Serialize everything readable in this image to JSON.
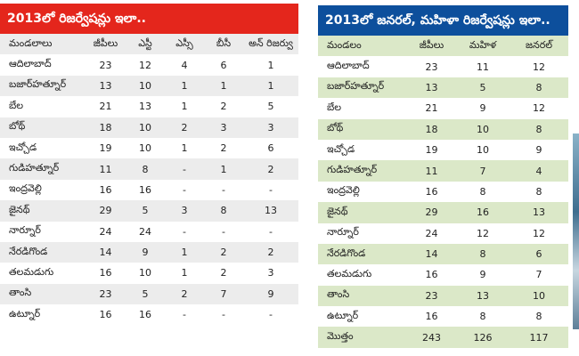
{
  "left_table": {
    "title": "2013లో రిజర్వేషన్లు ఇలా..",
    "headers": [
      "మండలాలు",
      "జీపీలు",
      "ఎస్టీ",
      "ఎస్సీ",
      "బీసీ",
      "అన్ రిజర్వు"
    ],
    "rows": [
      [
        "ఆదిలాబాద్",
        "23",
        "12",
        "4",
        "6",
        "1"
      ],
      [
        "బజార్‌హత్నూర్",
        "13",
        "10",
        "1",
        "1",
        "1"
      ],
      [
        "బేల",
        "21",
        "13",
        "1",
        "2",
        "5"
      ],
      [
        "బోథ్",
        "18",
        "10",
        "2",
        "3",
        "3"
      ],
      [
        "ఇచ్చోడ",
        "19",
        "10",
        "1",
        "2",
        "6"
      ],
      [
        "గుడిహత్నూర్",
        "11",
        "8",
        "-",
        "1",
        "2"
      ],
      [
        "ఇంద్రవెల్లి",
        "16",
        "16",
        "-",
        "-",
        "-"
      ],
      [
        "జైనథ్",
        "29",
        "5",
        "3",
        "8",
        "13"
      ],
      [
        "నార్నూర్",
        "24",
        "24",
        "-",
        "-",
        "-"
      ],
      [
        "నేరడిగొండ",
        "14",
        "9",
        "1",
        "2",
        "2"
      ],
      [
        "తలమడుగు",
        "16",
        "10",
        "1",
        "2",
        "3"
      ],
      [
        "తాంసి",
        "23",
        "5",
        "2",
        "7",
        "9"
      ],
      [
        "ఉట్నూర్",
        "16",
        "16",
        "-",
        "-",
        "-"
      ]
    ]
  },
  "right_table": {
    "title": "2013లో జనరల్, మహిళా రిజర్వేషన్లు ఇలా..",
    "headers": [
      "మండలం",
      "జీపీలు",
      "మహిళ",
      "జనరల్"
    ],
    "rows": [
      [
        "ఆదిలాబాద్",
        "23",
        "11",
        "12"
      ],
      [
        "బజార్‌హత్నూర్",
        "13",
        "5",
        "8"
      ],
      [
        "బేల",
        "21",
        "9",
        "12"
      ],
      [
        "బోథ్",
        "18",
        "10",
        "8"
      ],
      [
        "ఇచ్చోడ",
        "19",
        "10",
        "9"
      ],
      [
        "గుడిహత్నూర్",
        "11",
        "7",
        "4"
      ],
      [
        "ఇంద్రవెల్లి",
        "16",
        "8",
        "8"
      ],
      [
        "జైనథ్",
        "29",
        "16",
        "13"
      ],
      [
        "నార్నూర్",
        "24",
        "12",
        "12"
      ],
      [
        "నేరడిగొండ",
        "14",
        "8",
        "6"
      ],
      [
        "తలమడుగు",
        "16",
        "9",
        "7"
      ],
      [
        "తాంసి",
        "23",
        "13",
        "10"
      ],
      [
        "ఉట్నూర్",
        "16",
        "8",
        "8"
      ],
      [
        "మొత్తం",
        "243",
        "126",
        "117"
      ]
    ]
  },
  "colors": {
    "left_title_bg": "#e4261c",
    "right_title_bg": "#0d4f9c",
    "left_stripe": "#ececec",
    "right_stripe": "#dbe8c8"
  }
}
